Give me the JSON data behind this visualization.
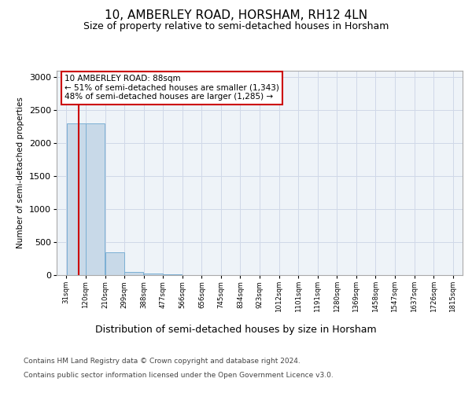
{
  "title": "10, AMBERLEY ROAD, HORSHAM, RH12 4LN",
  "subtitle": "Size of property relative to semi-detached houses in Horsham",
  "xlabel": "Distribution of semi-detached houses by size in Horsham",
  "ylabel": "Number of semi-detached properties",
  "bar_edges": [
    31,
    120,
    210,
    299,
    388,
    477,
    566,
    656,
    745,
    834,
    923,
    1012,
    1101,
    1191,
    1280,
    1369,
    1458,
    1547,
    1637,
    1726,
    1815
  ],
  "bar_heights": [
    2300,
    2300,
    340,
    50,
    20,
    10,
    5,
    3,
    2,
    2,
    1,
    1,
    1,
    1,
    1,
    0,
    0,
    0,
    0,
    0
  ],
  "bar_color": "#c8d9e8",
  "bar_edge_color": "#7bafd4",
  "grid_color": "#d0d8e8",
  "background_color": "#ffffff",
  "plot_bg_color": "#eef3f8",
  "property_sqm": 88,
  "property_line_color": "#cc0000",
  "annotation_line1": "10 AMBERLEY ROAD: 88sqm",
  "annotation_line2": "← 51% of semi-detached houses are smaller (1,343)",
  "annotation_line3": "48% of semi-detached houses are larger (1,285) →",
  "annotation_box_color": "#cc0000",
  "footer_line1": "Contains HM Land Registry data © Crown copyright and database right 2024.",
  "footer_line2": "Contains public sector information licensed under the Open Government Licence v3.0.",
  "ylim": [
    0,
    3100
  ],
  "yticks": [
    0,
    500,
    1000,
    1500,
    2000,
    2500,
    3000
  ],
  "tick_labels": [
    "31sqm",
    "120sqm",
    "210sqm",
    "299sqm",
    "388sqm",
    "477sqm",
    "566sqm",
    "656sqm",
    "745sqm",
    "834sqm",
    "923sqm",
    "1012sqm",
    "1101sqm",
    "1191sqm",
    "1280sqm",
    "1369sqm",
    "1458sqm",
    "1547sqm",
    "1637sqm",
    "1726sqm",
    "1815sqm"
  ]
}
